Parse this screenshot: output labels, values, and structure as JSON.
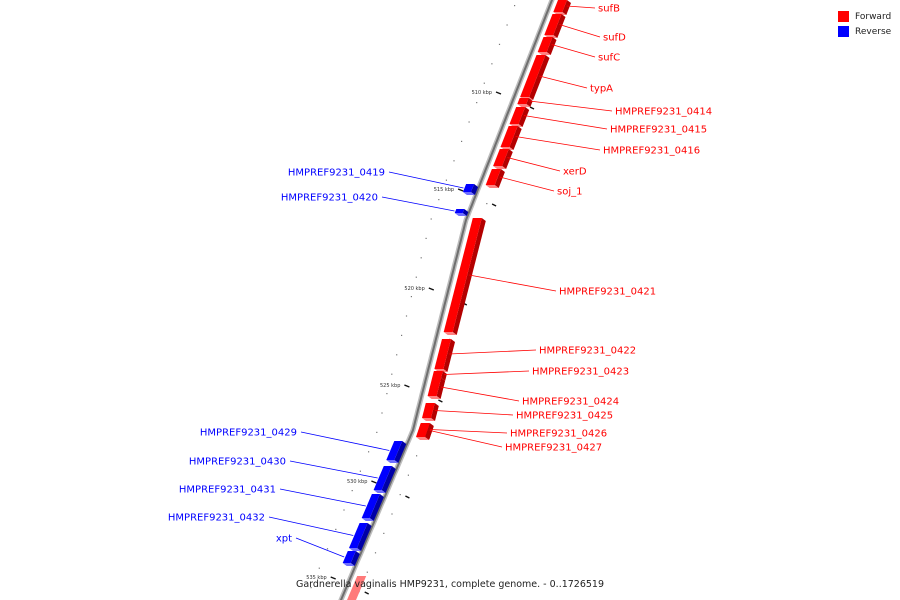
{
  "legend": {
    "forward_label": "Forward",
    "reverse_label": "Reverse",
    "forward_color": "#ff0000",
    "reverse_color": "#0000ff"
  },
  "caption": "Gardnerella vaginalis HMP9231, complete genome. - 0..1726519",
  "ticks": [
    {
      "label": "510 kbp"
    },
    {
      "label": "515 kbp"
    },
    {
      "label": "520 kbp"
    },
    {
      "label": "525 kbp"
    },
    {
      "label": "530 kbp"
    },
    {
      "label": "535 kbp"
    }
  ],
  "genes": [
    {
      "name": "sufB",
      "strand": "forward"
    },
    {
      "name": "sufD",
      "strand": "forward"
    },
    {
      "name": "sufC",
      "strand": "forward"
    },
    {
      "name": "typA",
      "strand": "forward"
    },
    {
      "name": "HMPREF9231_0414",
      "strand": "forward"
    },
    {
      "name": "HMPREF9231_0415",
      "strand": "forward"
    },
    {
      "name": "HMPREF9231_0416",
      "strand": "forward"
    },
    {
      "name": "xerD",
      "strand": "forward"
    },
    {
      "name": "soj_1",
      "strand": "forward"
    },
    {
      "name": "HMPREF9231_0419",
      "strand": "reverse"
    },
    {
      "name": "HMPREF9231_0420",
      "strand": "reverse"
    },
    {
      "name": "HMPREF9231_0421",
      "strand": "forward"
    },
    {
      "name": "HMPREF9231_0422",
      "strand": "forward"
    },
    {
      "name": "HMPREF9231_0423",
      "strand": "forward"
    },
    {
      "name": "HMPREF9231_0424",
      "strand": "forward"
    },
    {
      "name": "HMPREF9231_0425",
      "strand": "forward"
    },
    {
      "name": "HMPREF9231_0426",
      "strand": "forward"
    },
    {
      "name": "HMPREF9231_0427",
      "strand": "forward"
    },
    {
      "name": "HMPREF9231_0429",
      "strand": "reverse"
    },
    {
      "name": "HMPREF9231_0430",
      "strand": "reverse"
    },
    {
      "name": "HMPREF9231_0431",
      "strand": "reverse"
    },
    {
      "name": "HMPREF9231_0432",
      "strand": "reverse"
    },
    {
      "name": "xpt",
      "strand": "reverse"
    }
  ]
}
